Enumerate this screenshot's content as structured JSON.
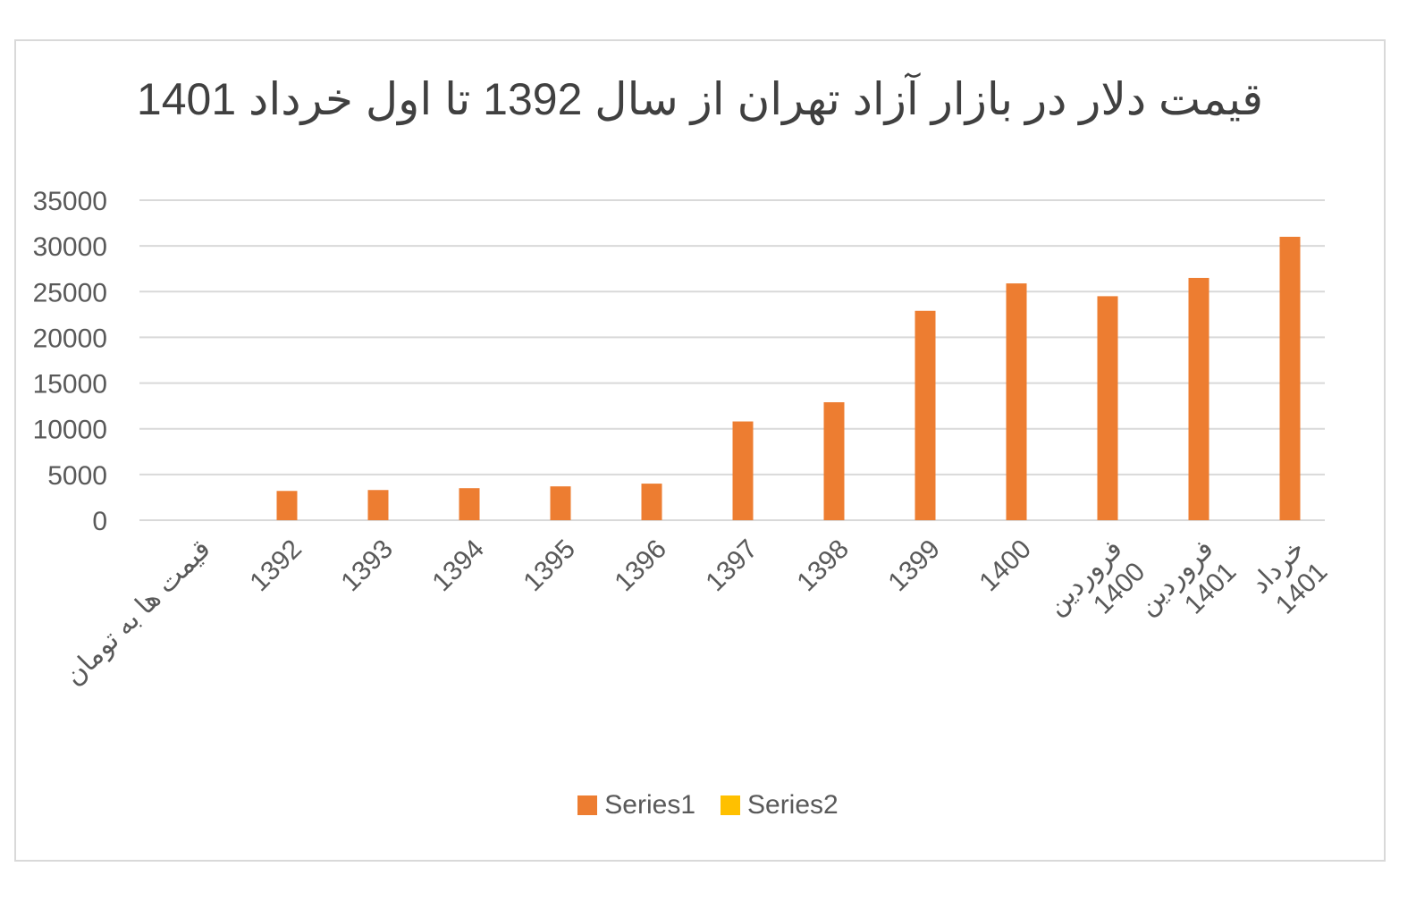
{
  "chart_data": {
    "type": "bar",
    "title": "قیمت دلار در بازار آزاد تهران  از سال 1392 تا اول خرداد 1401",
    "categories": [
      "قیمت ها به تومان",
      "1392",
      "1393",
      "1394",
      "1395",
      "1396",
      "1397",
      "1398",
      "1399",
      "1400",
      "فروردین 1400",
      "فروردین 1401",
      "خرداد 1401"
    ],
    "series": [
      {
        "name": "Series1",
        "color": "#ed7d31",
        "values": [
          0,
          3200,
          3300,
          3500,
          3700,
          4000,
          10800,
          12900,
          22900,
          25900,
          24500,
          26500,
          31000
        ]
      },
      {
        "name": "Series2",
        "color": "#ffc000",
        "values": [
          0,
          0,
          0,
          0,
          0,
          0,
          0,
          0,
          0,
          0,
          0,
          0,
          0
        ]
      }
    ],
    "ylim": [
      0,
      35000
    ],
    "yticks": [
      0,
      5000,
      10000,
      15000,
      20000,
      25000,
      30000,
      35000
    ],
    "xlabel": "",
    "ylabel": "",
    "grid": true,
    "legend_position": "bottom"
  }
}
